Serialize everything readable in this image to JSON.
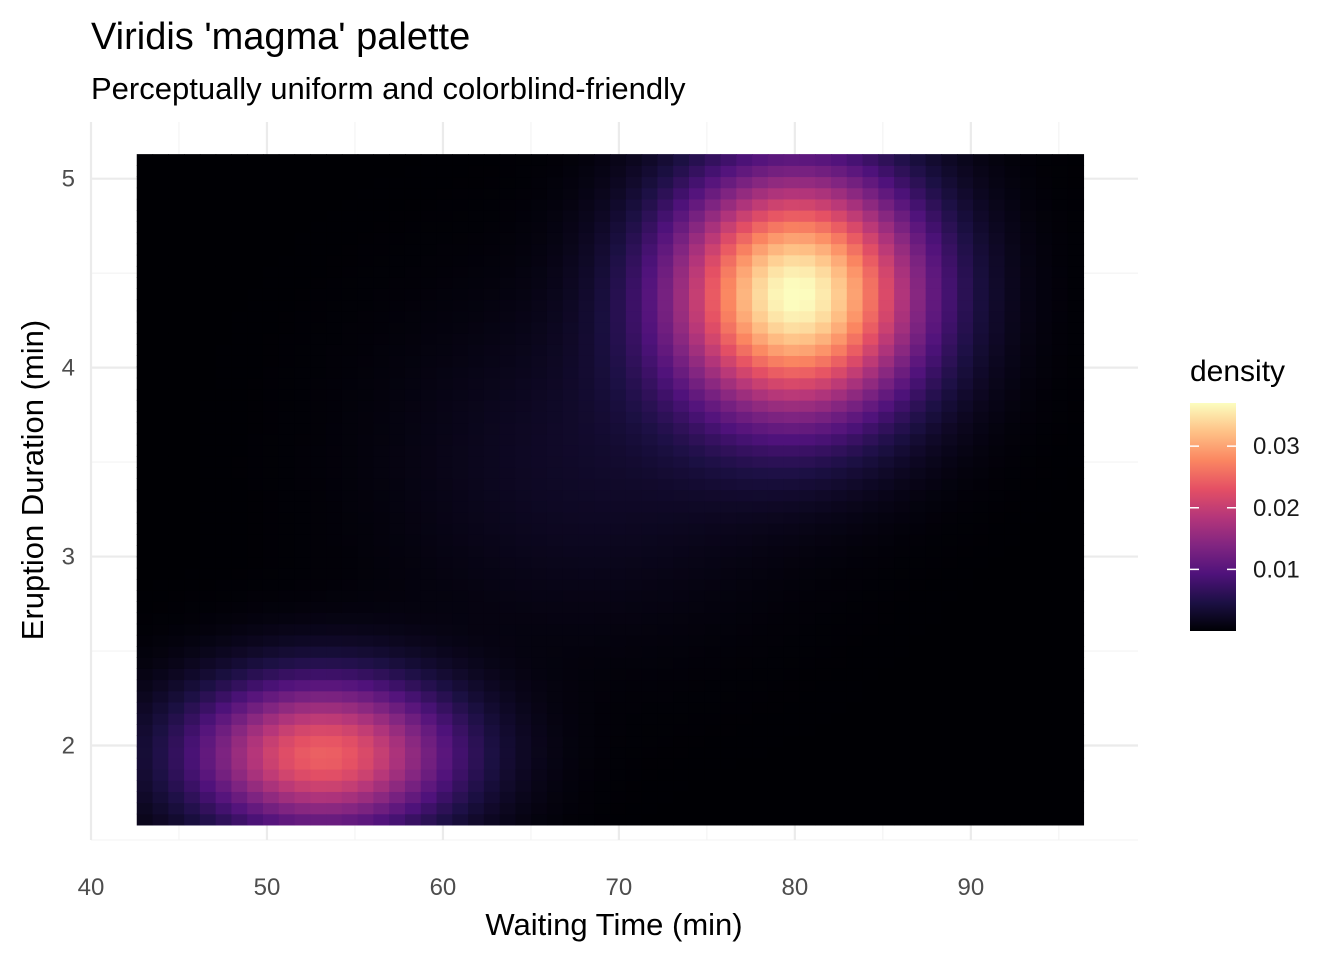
{
  "chart_data": {
    "type": "heatmap",
    "title": "Viridis 'magma' palette",
    "subtitle": "Perceptually uniform and colorblind-friendly",
    "xlabel": "Waiting Time (min)",
    "ylabel": "Eruption Duration (min)",
    "xlim": [
      40,
      99.5
    ],
    "ylim": [
      1.5,
      5.3
    ],
    "x_ticks": [
      40,
      50,
      60,
      70,
      80,
      90
    ],
    "y_ticks": [
      2,
      3,
      4,
      5
    ],
    "tile_extent": {
      "x": [
        42.6,
        96.4
      ],
      "y": [
        1.58,
        5.13
      ]
    },
    "grid_resolution": [
      60,
      60
    ],
    "density_components": [
      {
        "mean_x": 80.1,
        "mean_y": 4.39,
        "sd_x": 5.0,
        "sd_y": 0.45,
        "peak": 0.037
      },
      {
        "mean_x": 53.2,
        "mean_y": 1.95,
        "sd_x": 5.2,
        "sd_y": 0.28,
        "peak": 0.0245
      },
      {
        "mean_x": 68.0,
        "mean_y": 3.5,
        "sd_x": 7.5,
        "sd_y": 0.6,
        "peak": 0.0025
      }
    ],
    "fill_scale": {
      "name": "density",
      "palette": "magma",
      "limits": [
        0.0,
        0.037
      ],
      "breaks": [
        0.01,
        0.02,
        0.03
      ],
      "break_labels": [
        "0.01",
        "0.02",
        "0.03"
      ],
      "colors": [
        "#000004",
        "#1c1044",
        "#4f127b",
        "#812581",
        "#b5367a",
        "#e55064",
        "#fb8761",
        "#fec287",
        "#fcfdbf"
      ]
    },
    "grid": true,
    "legend_position": "right"
  }
}
